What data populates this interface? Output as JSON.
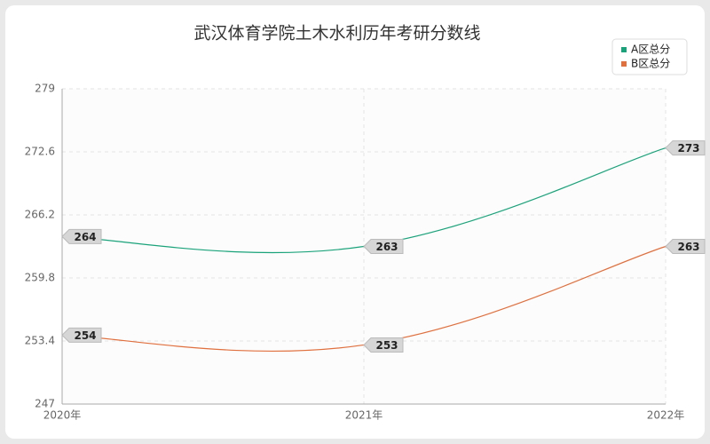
{
  "chart_data": {
    "type": "line",
    "title": "武汉体育学院土木水利历年考研分数线",
    "categories": [
      "2020年",
      "2021年",
      "2022年"
    ],
    "series": [
      {
        "name": "A区总分",
        "color": "#1aa37a",
        "values": [
          264,
          263,
          273
        ]
      },
      {
        "name": "B区总分",
        "color": "#e0703e",
        "values": [
          254,
          253,
          263
        ]
      }
    ],
    "ylim": [
      247,
      279
    ],
    "yticks": [
      247,
      253.4,
      259.8,
      266.2,
      272.6,
      279
    ],
    "grid": true,
    "legend": "top-right",
    "smooth": true
  }
}
